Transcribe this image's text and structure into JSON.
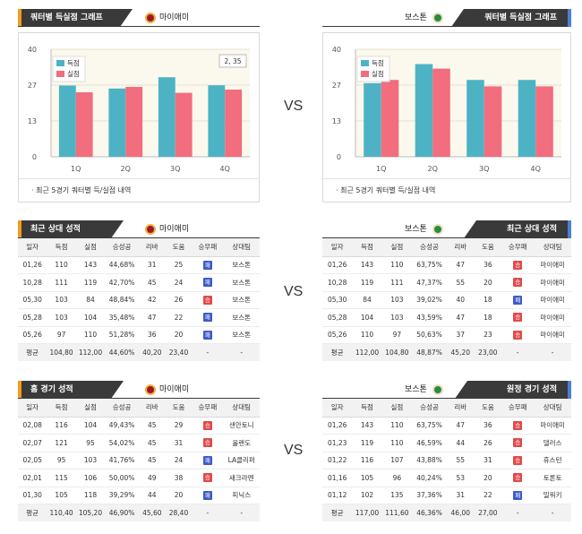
{
  "vs_label": "VS",
  "quarter": {
    "left": {
      "title": "쿼터별 득실점 그래프",
      "team": "마이애미",
      "footnote": "· 최근 5경기 쿼터별 득/실점 내역",
      "tooltip": "2, 35"
    },
    "right": {
      "title": "쿼터별 득실점 그래프",
      "team": "보스톤",
      "footnote": "· 최근 5경기 쿼터별 득/실점 내역"
    }
  },
  "chart_data": [
    {
      "type": "bar",
      "categories": [
        "1Q",
        "2Q",
        "3Q",
        "4Q"
      ],
      "series": [
        {
          "name": "득점",
          "values": [
            26.5,
            25.4,
            29.6,
            26.6
          ]
        },
        {
          "name": "실점",
          "values": [
            24.0,
            26.0,
            23.8,
            25.0
          ]
        }
      ],
      "ylim": [
        0,
        40
      ],
      "yticks": [
        "0",
        "13",
        "27",
        "40"
      ],
      "legend": "top-left",
      "colors": {
        "득점": "#4db3c4",
        "실점": "#f26d7d"
      }
    },
    {
      "type": "bar",
      "categories": [
        "1Q",
        "2Q",
        "3Q",
        "4Q"
      ],
      "series": [
        {
          "name": "득점",
          "values": [
            27.4,
            34.5,
            28.6,
            28.6
          ]
        },
        {
          "name": "실점",
          "values": [
            28.6,
            32.8,
            26.2,
            26.2
          ]
        }
      ],
      "ylim": [
        0,
        40
      ],
      "yticks": [
        "0",
        "13",
        "27",
        "40"
      ],
      "legend": "top-left",
      "colors": {
        "득점": "#4db3c4",
        "실점": "#f26d7d"
      }
    }
  ],
  "columns": [
    "일자",
    "득점",
    "실점",
    "승성공",
    "리바",
    "도움",
    "승무패",
    "상대팀"
  ],
  "result_labels": {
    "win": "승",
    "loss": "패"
  },
  "recent": {
    "left": {
      "title": "최근 상대 성적",
      "team": "마이애미",
      "rows": [
        {
          "date": "01,26",
          "pts": "110",
          "opp": "143",
          "pct": "44,68%",
          "reb": "31",
          "ast": "25",
          "res": "loss",
          "vs": "보스톤"
        },
        {
          "date": "10,28",
          "pts": "111",
          "opp": "119",
          "pct": "42,70%",
          "reb": "45",
          "ast": "24",
          "res": "loss",
          "vs": "보스톤"
        },
        {
          "date": "05,30",
          "pts": "103",
          "opp": "84",
          "pct": "48,84%",
          "reb": "42",
          "ast": "26",
          "res": "win",
          "vs": "보스톤"
        },
        {
          "date": "05,28",
          "pts": "103",
          "opp": "104",
          "pct": "35,48%",
          "reb": "47",
          "ast": "22",
          "res": "loss",
          "vs": "보스톤"
        },
        {
          "date": "05,26",
          "pts": "97",
          "opp": "110",
          "pct": "51,28%",
          "reb": "36",
          "ast": "20",
          "res": "loss",
          "vs": "보스톤"
        }
      ],
      "avg": {
        "label": "평균",
        "pts": "104,80",
        "opp": "112,00",
        "pct": "44,60%",
        "reb": "40,20",
        "ast": "23,40",
        "res": "-",
        "vs": "-"
      }
    },
    "right": {
      "title": "최근 상대 성적",
      "team": "보스톤",
      "rows": [
        {
          "date": "01,26",
          "pts": "143",
          "opp": "110",
          "pct": "63,75%",
          "reb": "47",
          "ast": "36",
          "res": "win",
          "vs": "마이애미"
        },
        {
          "date": "10,28",
          "pts": "119",
          "opp": "111",
          "pct": "47,37%",
          "reb": "55",
          "ast": "20",
          "res": "win",
          "vs": "마이애미"
        },
        {
          "date": "05,30",
          "pts": "84",
          "opp": "103",
          "pct": "39,02%",
          "reb": "40",
          "ast": "18",
          "res": "loss",
          "vs": "마이애미"
        },
        {
          "date": "05,28",
          "pts": "104",
          "opp": "103",
          "pct": "43,59%",
          "reb": "47",
          "ast": "18",
          "res": "win",
          "vs": "마이애미"
        },
        {
          "date": "05,26",
          "pts": "110",
          "opp": "97",
          "pct": "50,63%",
          "reb": "37",
          "ast": "23",
          "res": "win",
          "vs": "마이애미"
        }
      ],
      "avg": {
        "label": "평균",
        "pts": "112,00",
        "opp": "104,80",
        "pct": "48,87%",
        "reb": "45,20",
        "ast": "23,00",
        "res": "-",
        "vs": "-"
      }
    }
  },
  "games": {
    "left": {
      "title": "홈 경기 성적",
      "team": "마이애미",
      "rows": [
        {
          "date": "02,08",
          "pts": "116",
          "opp": "104",
          "pct": "49,43%",
          "reb": "45",
          "ast": "29",
          "res": "win",
          "vs": "샌안토니"
        },
        {
          "date": "02,07",
          "pts": "121",
          "opp": "95",
          "pct": "54,02%",
          "reb": "45",
          "ast": "31",
          "res": "win",
          "vs": "올랜도"
        },
        {
          "date": "02,05",
          "pts": "95",
          "opp": "103",
          "pct": "41,76%",
          "reb": "45",
          "ast": "24",
          "res": "loss",
          "vs": "LA클리퍼"
        },
        {
          "date": "02,01",
          "pts": "115",
          "opp": "106",
          "pct": "50,00%",
          "reb": "49",
          "ast": "38",
          "res": "win",
          "vs": "새크라멘"
        },
        {
          "date": "01,30",
          "pts": "105",
          "opp": "118",
          "pct": "39,29%",
          "reb": "44",
          "ast": "20",
          "res": "loss",
          "vs": "피닉스"
        }
      ],
      "avg": {
        "label": "평균",
        "pts": "110,40",
        "opp": "105,20",
        "pct": "46,90%",
        "reb": "45,60",
        "ast": "28,40",
        "res": "-",
        "vs": "-"
      }
    },
    "right": {
      "title": "원정 경기 성적",
      "team": "보스톤",
      "rows": [
        {
          "date": "01,26",
          "pts": "143",
          "opp": "110",
          "pct": "63,75%",
          "reb": "47",
          "ast": "36",
          "res": "win",
          "vs": "마이애미"
        },
        {
          "date": "01,23",
          "pts": "119",
          "opp": "110",
          "pct": "46,59%",
          "reb": "44",
          "ast": "26",
          "res": "win",
          "vs": "댈러스"
        },
        {
          "date": "01,22",
          "pts": "116",
          "opp": "107",
          "pct": "43,88%",
          "reb": "55",
          "ast": "31",
          "res": "win",
          "vs": "휴스턴"
        },
        {
          "date": "01,16",
          "pts": "105",
          "opp": "96",
          "pct": "40,24%",
          "reb": "53",
          "ast": "20",
          "res": "win",
          "vs": "토론토"
        },
        {
          "date": "01,12",
          "pts": "102",
          "opp": "135",
          "pct": "37,36%",
          "reb": "31",
          "ast": "22",
          "res": "loss",
          "vs": "밀워키"
        }
      ],
      "avg": {
        "label": "평균",
        "pts": "117,00",
        "opp": "111,60",
        "pct": "46,36%",
        "reb": "46,00",
        "ast": "27,00",
        "res": "-",
        "vs": "-"
      }
    }
  }
}
